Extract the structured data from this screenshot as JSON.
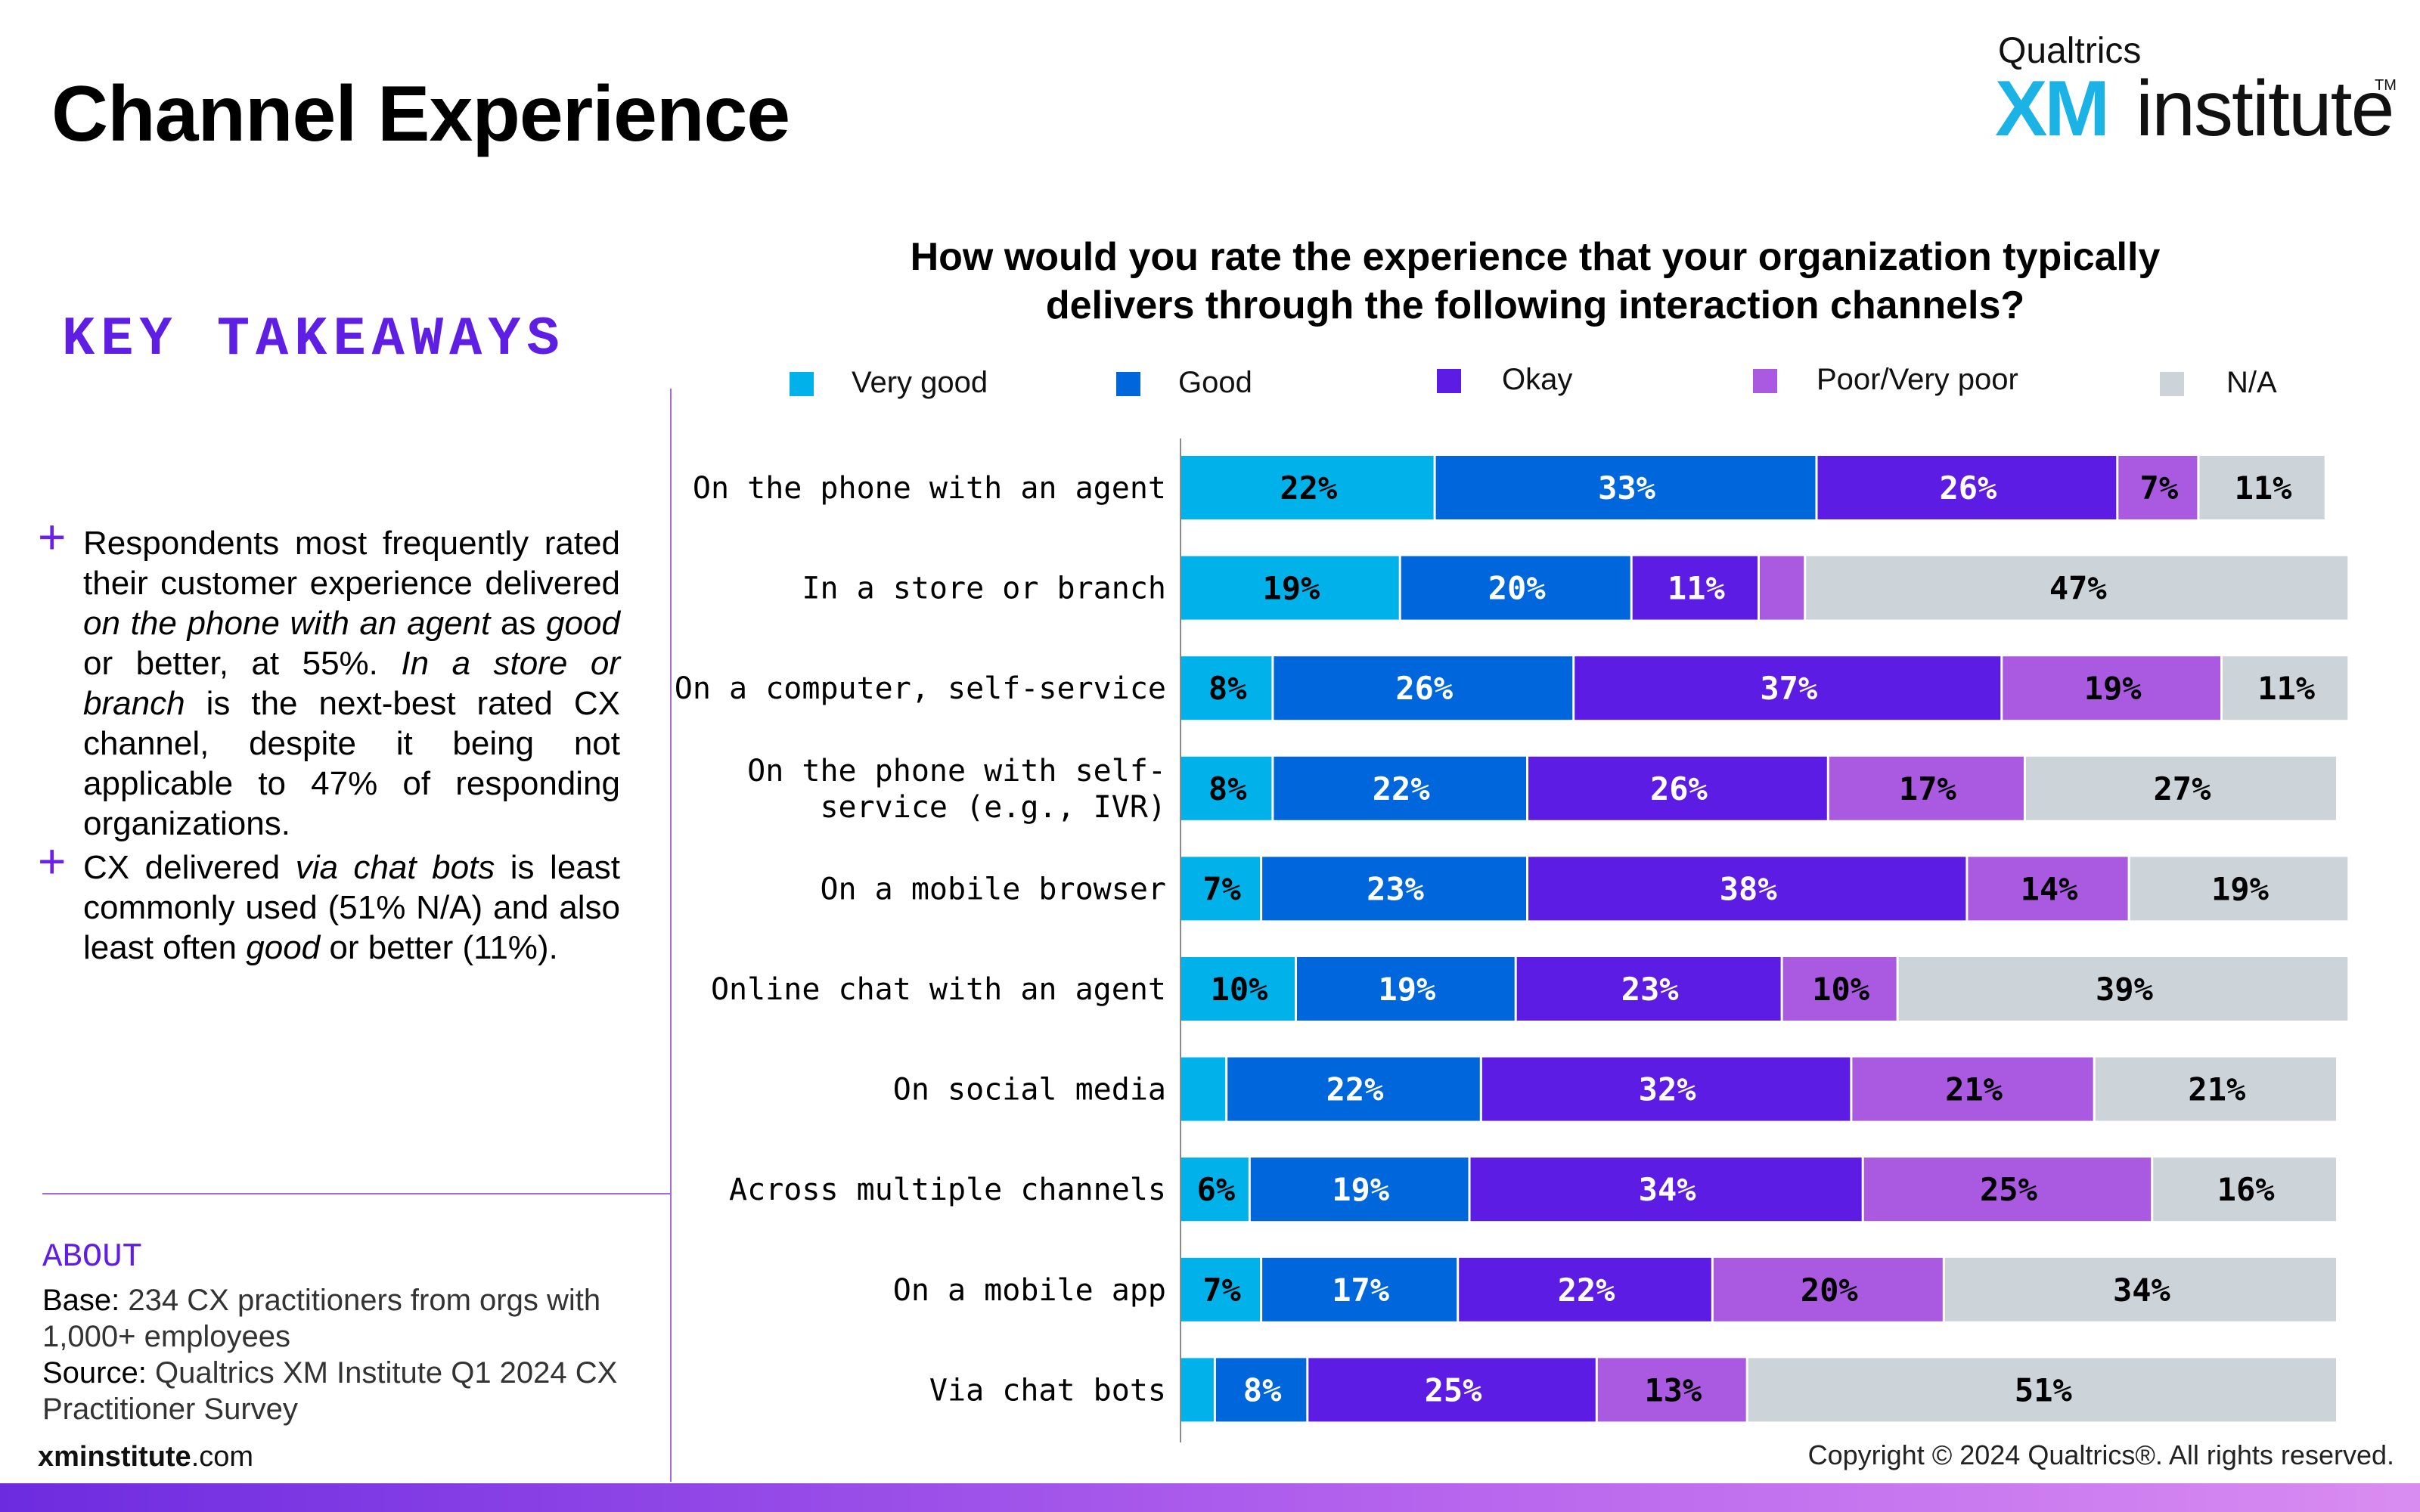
{
  "page_title": "Channel Experience",
  "logo": {
    "top": "Qualtrics",
    "xm": "XM",
    "institute": "institute",
    "tm": "TM"
  },
  "key_takeaways": {
    "title": "KEY TAKEAWAYS",
    "items": [
      {
        "plus": "+",
        "parts": [
          "Respondents most frequently rated their customer experience delivered ",
          "on the phone with an agent",
          " as ",
          "good",
          " or better, at 55%. ",
          "In a store or branch",
          " is the next-best rated CX channel, despite it being not applicable to 47% of responding organizations."
        ]
      },
      {
        "plus": "+",
        "parts": [
          "CX delivered ",
          "via chat bots",
          " is least commonly used (51% N/A) and also least often ",
          "good",
          " or better (11%)."
        ]
      }
    ]
  },
  "about": {
    "title": "ABOUT",
    "base_label": "Base:",
    "base_text": " 234 CX practitioners from orgs with 1,000+ employees",
    "source_label": "Source:",
    "source_text": " Qualtrics XM Institute Q1 2024 CX Practitioner Survey"
  },
  "footer": {
    "site_bold": "xminstitute",
    "site_rest": ".com",
    "copyright": "Copyright © 2024 Qualtrics®. All rights reserved."
  },
  "colors": {
    "very_good": "#00b1ea",
    "good": "#0066dc",
    "okay": "#5c1ce3",
    "poor": "#a95ae0",
    "na": "#cdd4d9",
    "accent": "#5f1ee3"
  },
  "chart_data": {
    "type": "bar",
    "orientation": "horizontal",
    "stacked": true,
    "title": "How would you rate the experience that your organization typically delivers through the following interaction channels?",
    "title_lines": [
      "How would you rate the experience that your organization typically",
      "delivers through the following interaction channels?"
    ],
    "legend_placement": "top",
    "xlim": [
      0,
      100
    ],
    "unit": "%",
    "categories": [
      "On the phone with an agent",
      "In a store or branch",
      "On a computer, self-service",
      "On the phone with self-service (e.g., IVR)",
      "On a mobile browser",
      "Online chat with an agent",
      "On social media",
      "Across multiple channels",
      "On a mobile app",
      "Via chat bots"
    ],
    "series": [
      {
        "name": "Very good",
        "color": "#00b1ea",
        "label_color": "#000000",
        "values": [
          22,
          19,
          8,
          8,
          7,
          10,
          4,
          6,
          7,
          3
        ]
      },
      {
        "name": "Good",
        "color": "#0066dc",
        "label_color": "#ffffff",
        "values": [
          33,
          20,
          26,
          22,
          23,
          19,
          22,
          19,
          17,
          8
        ]
      },
      {
        "name": "Okay",
        "color": "#5c1ce3",
        "label_color": "#ffffff",
        "values": [
          26,
          11,
          37,
          26,
          38,
          23,
          32,
          34,
          22,
          25
        ]
      },
      {
        "name": "Poor/Very poor",
        "color": "#a95ae0",
        "label_color": "#000000",
        "values": [
          7,
          4,
          19,
          17,
          14,
          10,
          21,
          25,
          20,
          13
        ]
      },
      {
        "name": "N/A",
        "color": "#cdd4d9",
        "label_color": "#000000",
        "values": [
          11,
          47,
          11,
          27,
          19,
          39,
          21,
          16,
          34,
          51
        ]
      }
    ],
    "labels": [
      [
        "22%",
        "33%",
        "26%",
        "7%",
        "11%"
      ],
      [
        "19%",
        "20%",
        "11%",
        "",
        "47%"
      ],
      [
        "8%",
        "26%",
        "37%",
        "19%",
        "11%"
      ],
      [
        "8%",
        "22%",
        "26%",
        "17%",
        "27%"
      ],
      [
        "7%",
        "23%",
        "38%",
        "14%",
        "19%"
      ],
      [
        "10%",
        "19%",
        "23%",
        "10%",
        "39%"
      ],
      [
        "",
        "22%",
        "32%",
        "21%",
        "21%"
      ],
      [
        "6%",
        "19%",
        "34%",
        "25%",
        "16%"
      ],
      [
        "7%",
        "17%",
        "22%",
        "20%",
        "34%"
      ],
      [
        "",
        "8%",
        "25%",
        "13%",
        "51%"
      ]
    ]
  }
}
